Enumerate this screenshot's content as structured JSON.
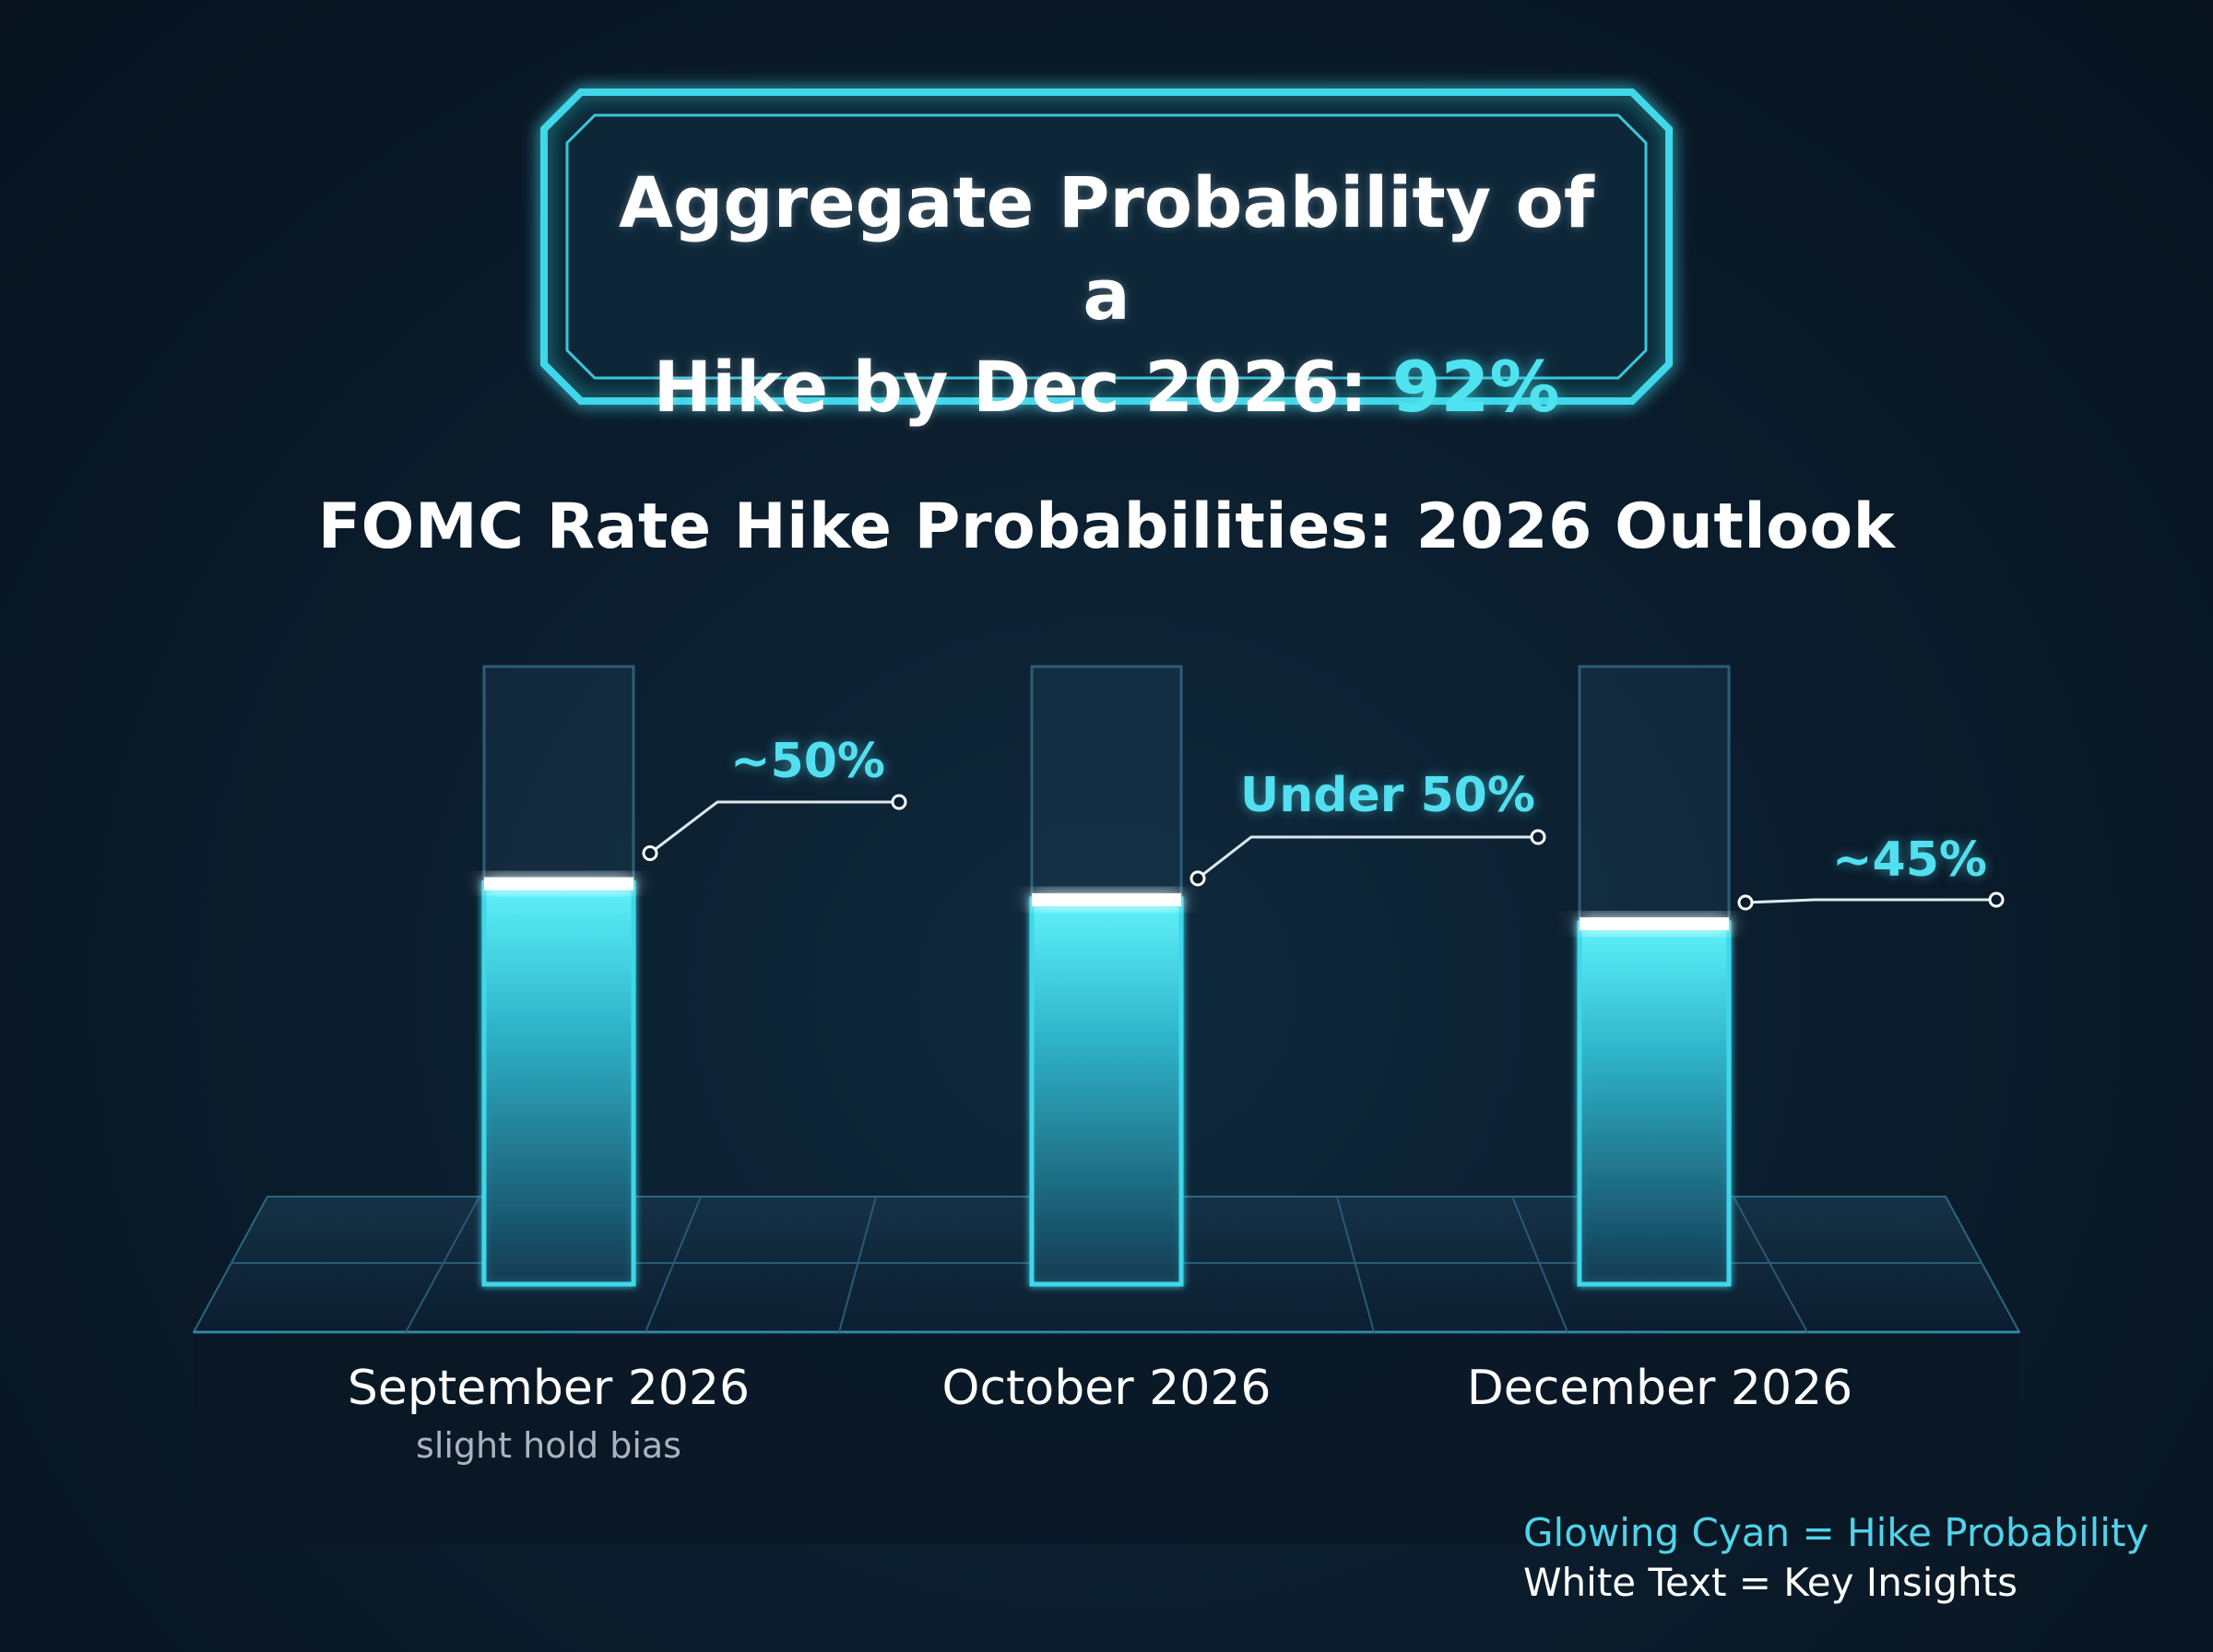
{
  "header": {
    "title_line1": "Aggregate Probability of a",
    "title_line2_prefix": "Hike by Dec 2026: ",
    "title_highlight": "92%"
  },
  "colors": {
    "accent_cyan": "#4fe3f0",
    "bar_frame": "#3fd7ea",
    "bar_cap": "#ffffff",
    "background": "#0b1d2d"
  },
  "chart_data": {
    "type": "bar",
    "title": "FOMC Rate Hike Probabilities: 2026 Outlook",
    "categories": [
      "September 2026",
      "October 2026",
      "December 2026"
    ],
    "category_notes": [
      "slight hold bias",
      "",
      ""
    ],
    "values": [
      50,
      48,
      45
    ],
    "value_labels": [
      "~50%",
      "Under 50%",
      "~45%"
    ],
    "ylim": [
      0,
      100
    ],
    "xlabel": "",
    "ylabel": "",
    "grid": false
  },
  "legend": {
    "cyan_text": "Glowing Cyan = Hike Probability",
    "white_text": "White Text = Key Insights"
  }
}
